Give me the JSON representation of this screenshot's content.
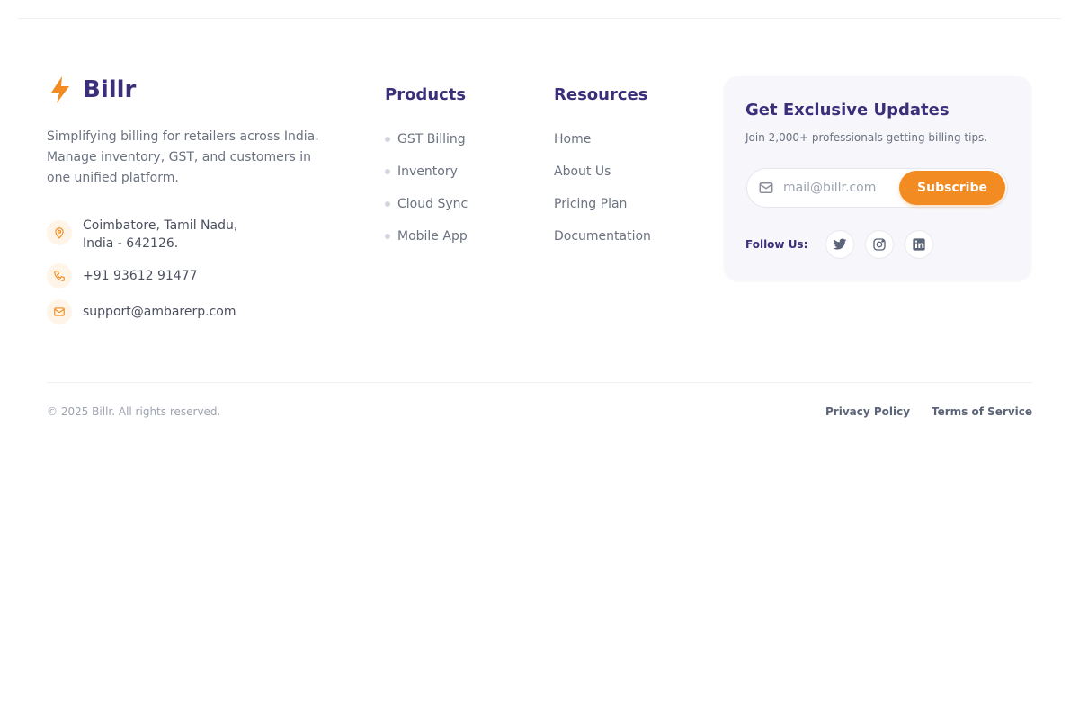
{
  "brand": {
    "name": "Billr",
    "accent": "#f28c22",
    "primary": "#3b2f7a",
    "icon": "bolt-icon"
  },
  "description": "Simplifying billing for retailers across India. Manage inventory, GST, and customers in one unified platform.",
  "contact": {
    "address_line1": "Coimbatore, Tamil Nadu,",
    "address_line2": "India - 642126.",
    "phone": "+91 93612 91477",
    "email": "support@ambarerp.com"
  },
  "products": {
    "title": "Products",
    "items": [
      {
        "label": "GST Billing"
      },
      {
        "label": "Inventory"
      },
      {
        "label": "Cloud Sync"
      },
      {
        "label": "Mobile App"
      }
    ]
  },
  "resources": {
    "title": "Resources",
    "items": [
      {
        "label": "Home"
      },
      {
        "label": "About Us"
      },
      {
        "label": "Pricing Plan"
      },
      {
        "label": "Documentation"
      }
    ]
  },
  "newsletter": {
    "title": "Get Exclusive Updates",
    "subtitle": "Join 2,000+ professionals getting billing tips.",
    "placeholder": "mail@billr.com",
    "value": "",
    "button": "Subscribe",
    "follow_label": "Follow Us:",
    "socials": [
      "twitter-icon",
      "instagram-icon",
      "linkedin-icon"
    ]
  },
  "footer": {
    "copyright": "© 2025 Billr. All rights reserved.",
    "privacy": "Privacy Policy",
    "terms": "Terms of Service"
  }
}
